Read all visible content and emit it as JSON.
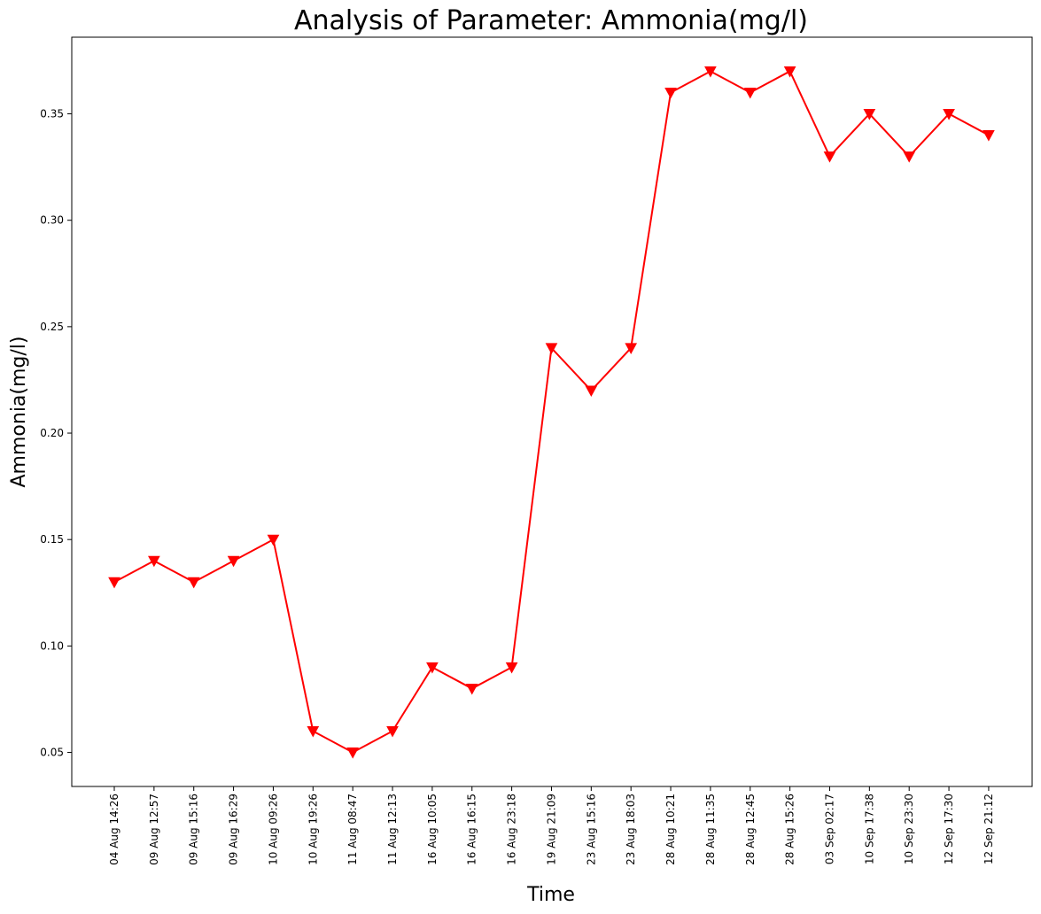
{
  "chart_data": {
    "type": "line",
    "title": "Analysis of Parameter: Ammonia(mg/l)",
    "xlabel": "Time",
    "ylabel": "Ammonia(mg/l)",
    "x": [
      "04 Aug 14:26",
      "09 Aug 12:57",
      "09 Aug 15:16",
      "09 Aug 16:29",
      "10 Aug 09:26",
      "10 Aug 19:26",
      "11 Aug 08:47",
      "11 Aug 12:13",
      "16 Aug 10:05",
      "16 Aug 16:15",
      "16 Aug 23:18",
      "19 Aug 21:09",
      "23 Aug 15:16",
      "23 Aug 18:03",
      "28 Aug 10:21",
      "28 Aug 11:35",
      "28 Aug 12:45",
      "28 Aug 15:26",
      "03 Sep 02:17",
      "10 Sep 17:38",
      "10 Sep 23:30",
      "12 Sep 17:30",
      "12 Sep 21:12"
    ],
    "series": [
      {
        "values": [
          0.13,
          0.14,
          0.13,
          0.14,
          0.15,
          0.06,
          0.05,
          0.06,
          0.09,
          0.08,
          0.09,
          0.24,
          0.22,
          0.24,
          0.36,
          0.37,
          0.36,
          0.37,
          0.33,
          0.35,
          0.33,
          0.35,
          0.34
        ],
        "color": "#ff0000",
        "marker": "triangle-down"
      }
    ],
    "yticks": [
      "0.05",
      "0.10",
      "0.15",
      "0.20",
      "0.25",
      "0.30",
      "0.35"
    ],
    "ylim": [
      0.034,
      0.386
    ],
    "grid": false,
    "legend": "none"
  }
}
